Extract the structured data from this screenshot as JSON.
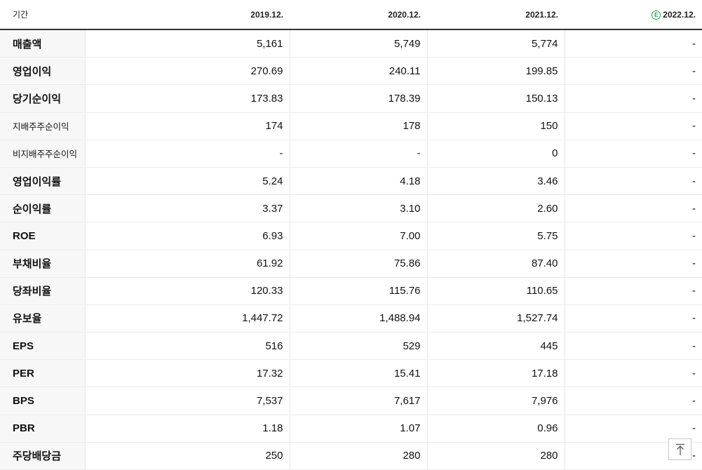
{
  "header": {
    "period_label": "기간",
    "columns": [
      "2019.12.",
      "2020.12.",
      "2021.12.",
      "2022.12."
    ],
    "estimate_marker": "E"
  },
  "rows": [
    {
      "label": "매출액",
      "values": [
        "5,161",
        "5,749",
        "5,774",
        "-"
      ]
    },
    {
      "label": "영업이익",
      "values": [
        "270.69",
        "240.11",
        "199.85",
        "-"
      ]
    },
    {
      "label": "당기순이익",
      "values": [
        "173.83",
        "178.39",
        "150.13",
        "-"
      ]
    },
    {
      "label": "지배주주순이익",
      "values": [
        "174",
        "178",
        "150",
        "-"
      ]
    },
    {
      "label": "비지배주주순이익",
      "values": [
        "-",
        "-",
        "0",
        "-"
      ]
    },
    {
      "label": "영업이익률",
      "values": [
        "5.24",
        "4.18",
        "3.46",
        "-"
      ]
    },
    {
      "label": "순이익률",
      "values": [
        "3.37",
        "3.10",
        "2.60",
        "-"
      ]
    },
    {
      "label": "ROE",
      "values": [
        "6.93",
        "7.00",
        "5.75",
        "-"
      ]
    },
    {
      "label": "부채비율",
      "values": [
        "61.92",
        "75.86",
        "87.40",
        "-"
      ]
    },
    {
      "label": "당좌비율",
      "values": [
        "120.33",
        "115.76",
        "110.65",
        "-"
      ]
    },
    {
      "label": "유보율",
      "values": [
        "1,447.72",
        "1,488.94",
        "1,527.74",
        "-"
      ]
    },
    {
      "label": "EPS",
      "values": [
        "516",
        "529",
        "445",
        "-"
      ]
    },
    {
      "label": "PER",
      "values": [
        "17.32",
        "15.41",
        "17.18",
        "-"
      ]
    },
    {
      "label": "BPS",
      "values": [
        "7,537",
        "7,617",
        "7,976",
        "-"
      ]
    },
    {
      "label": "PBR",
      "values": [
        "1.18",
        "1.07",
        "0.96",
        "-"
      ]
    },
    {
      "label": "주당배당금",
      "values": [
        "250",
        "280",
        "280",
        "-"
      ]
    }
  ],
  "scroll_top_icon": "arrow-up-to-top-icon"
}
